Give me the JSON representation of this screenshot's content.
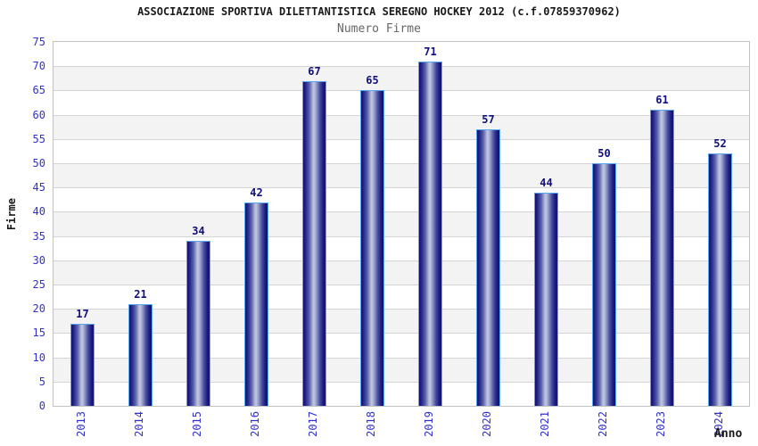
{
  "header": {
    "title": "ASSOCIAZIONE SPORTIVA DILETTANTISTICA SEREGNO HOCKEY 2012 (c.f.07859370962)",
    "subtitle": "Numero Firme"
  },
  "chart_data": {
    "type": "bar",
    "title": "ASSOCIAZIONE SPORTIVA DILETTANTISTICA SEREGNO HOCKEY 2012 (c.f.07859370962)",
    "subtitle": "Numero Firme",
    "categories": [
      "2013",
      "2014",
      "2015",
      "2016",
      "2017",
      "2018",
      "2019",
      "2020",
      "2021",
      "2022",
      "2023",
      "2024"
    ],
    "values": [
      17,
      21,
      34,
      42,
      67,
      65,
      71,
      57,
      44,
      50,
      61,
      52
    ],
    "xlabel": "Anno",
    "ylabel": "Firme",
    "ylim": [
      0,
      75
    ],
    "ytick_step": 5,
    "yticks": [
      0,
      5,
      10,
      15,
      20,
      25,
      30,
      35,
      40,
      45,
      50,
      55,
      60,
      65,
      70,
      75
    ],
    "grid": true,
    "legend_position": "none",
    "alternating_bands": true
  },
  "colors": {
    "bar_border": "#58a6f0",
    "bar_dark": "#12126e",
    "bar_highlight": "#c3c8e2",
    "value_label": "#10107e",
    "tick_label": "#3030cc",
    "band_gray": "#f3f3f3",
    "band_white": "#ffffff",
    "grid_line": "#d4d4d4",
    "plot_border": "#c2c2c2",
    "title": "#1a1a1a",
    "subtitle": "#666666"
  }
}
